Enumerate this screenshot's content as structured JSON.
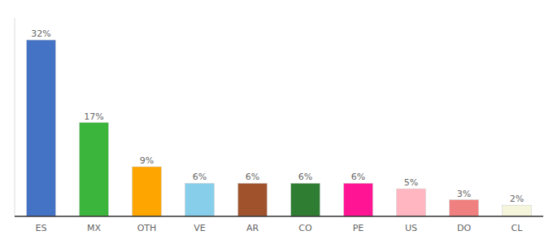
{
  "chart_data": {
    "type": "bar",
    "categories": [
      "ES",
      "MX",
      "OTH",
      "VE",
      "AR",
      "CO",
      "PE",
      "US",
      "DO",
      "CL"
    ],
    "values": [
      32,
      17,
      9,
      6,
      6,
      6,
      6,
      5,
      3,
      2
    ],
    "value_labels": [
      "32%",
      "17%",
      "9%",
      "6%",
      "6%",
      "6%",
      "6%",
      "5%",
      "3%",
      "2%"
    ],
    "colors": [
      "#4472C4",
      "#3CB53C",
      "#FFA500",
      "#87CEEB",
      "#A0522D",
      "#2E7D32",
      "#FF1493",
      "#FFB6C1",
      "#F08080",
      "#F5F5DC"
    ],
    "ylim": [
      0,
      36
    ],
    "data_labels": true,
    "tick_labels": "x",
    "grid": false
  }
}
